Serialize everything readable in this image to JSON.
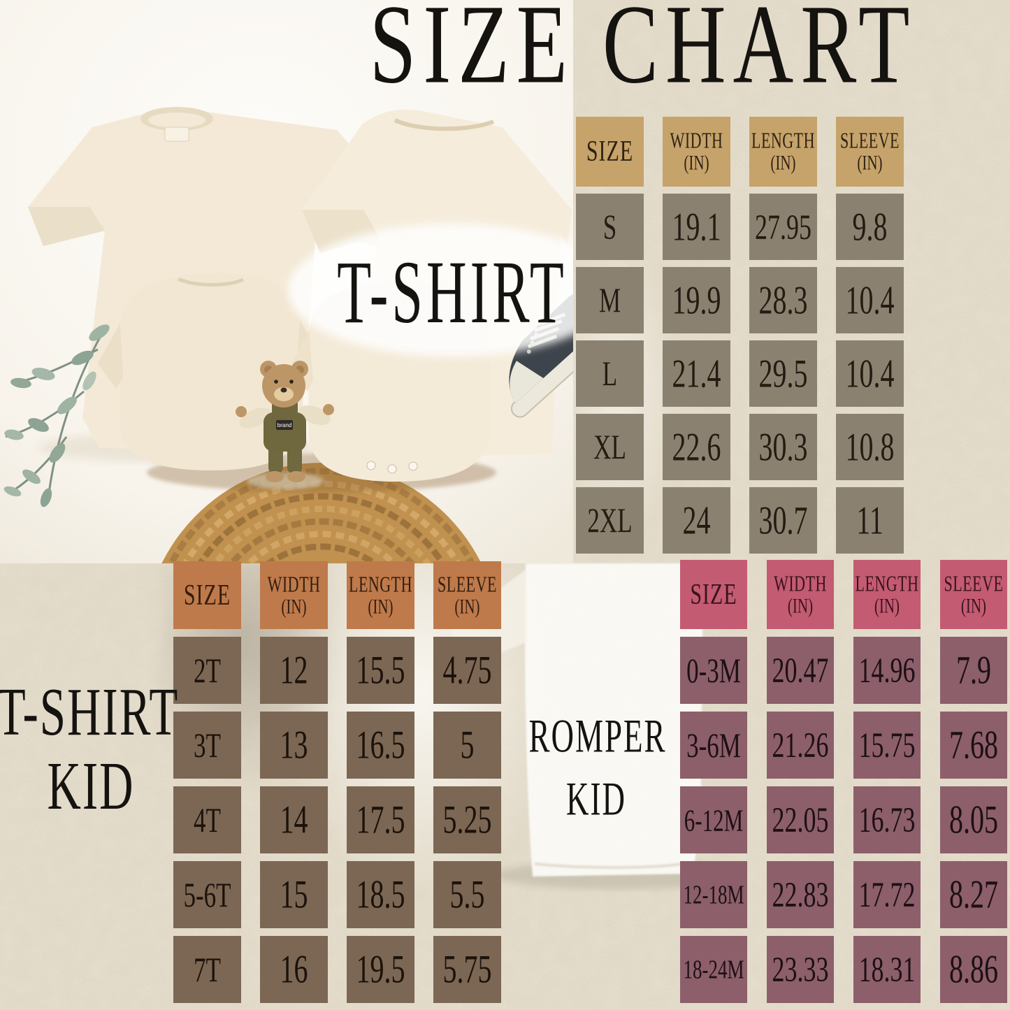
{
  "title": "SIZE CHART",
  "colors": {
    "background": "#ece4d2",
    "label_text": "#151310"
  },
  "photo": {
    "teddy_badge": "brand"
  },
  "tables": {
    "tshirt": {
      "label": "T-SHIRT",
      "colors": {
        "header_bg": "#c6a36a",
        "cell_bg": "#8b8170",
        "header_text": "#2f2214",
        "cell_text": "#241b12"
      },
      "columns": [
        {
          "label": "SIZE"
        },
        {
          "label": "WIDTH",
          "unit": "(IN)"
        },
        {
          "label": "LENGTH",
          "unit": "(IN)"
        },
        {
          "label": "SLEEVE",
          "unit": "(IN)"
        }
      ],
      "rows": [
        [
          "S",
          "19.1",
          "27.95",
          "9.8"
        ],
        [
          "M",
          "19.9",
          "28.3",
          "10.4"
        ],
        [
          "L",
          "21.4",
          "29.5",
          "10.4"
        ],
        [
          "XL",
          "22.6",
          "30.3",
          "10.8"
        ],
        [
          "2XL",
          "24",
          "30.7",
          "11"
        ]
      ]
    },
    "tshirt_kid": {
      "label_line1": "T-SHIRT",
      "label_line2": "KID",
      "colors": {
        "header_bg": "#bf7a4b",
        "cell_bg": "#7b6754",
        "header_text": "#321d0e",
        "cell_text": "#1c120a"
      },
      "columns": [
        {
          "label": "SIZE"
        },
        {
          "label": "WIDTH",
          "unit": "(IN)"
        },
        {
          "label": "LENGTH",
          "unit": "(IN)"
        },
        {
          "label": "SLEEVE",
          "unit": "(IN)"
        }
      ],
      "rows": [
        [
          "2T",
          "12",
          "15.5",
          "4.75"
        ],
        [
          "3T",
          "13",
          "16.5",
          "5"
        ],
        [
          "4T",
          "14",
          "17.5",
          "5.25"
        ],
        [
          "5-6T",
          "15",
          "18.5",
          "5.5"
        ],
        [
          "7T",
          "16",
          "19.5",
          "5.75"
        ]
      ]
    },
    "romper_kid": {
      "label_line1": "ROMPER",
      "label_line2": "KID",
      "colors": {
        "header_bg": "#c35b72",
        "cell_bg": "#8c5f6b",
        "header_text": "#39131d",
        "cell_text": "#1d1014"
      },
      "columns": [
        {
          "label": "SIZE"
        },
        {
          "label": "WIDTH",
          "unit": "(IN)"
        },
        {
          "label": "LENGTH",
          "unit": "(IN)"
        },
        {
          "label": "SLEEVE",
          "unit": "(IN)"
        }
      ],
      "rows": [
        [
          "0-3M",
          "20.47",
          "14.96",
          "7.9"
        ],
        [
          "3-6M",
          "21.26",
          "15.75",
          "7.68"
        ],
        [
          "6-12M",
          "22.05",
          "16.73",
          "8.05"
        ],
        [
          "12-18M",
          "22.83",
          "17.72",
          "8.27"
        ],
        [
          "18-24M",
          "23.33",
          "18.31",
          "8.86"
        ]
      ]
    }
  },
  "chart_data": [
    {
      "type": "table",
      "title": "T-SHIRT",
      "columns": [
        "SIZE",
        "WIDTH (IN)",
        "LENGTH (IN)",
        "SLEEVE (IN)"
      ],
      "rows": [
        [
          "S",
          19.1,
          27.95,
          9.8
        ],
        [
          "M",
          19.9,
          28.3,
          10.4
        ],
        [
          "L",
          21.4,
          29.5,
          10.4
        ],
        [
          "XL",
          22.6,
          30.3,
          10.8
        ],
        [
          "2XL",
          24,
          30.7,
          11
        ]
      ]
    },
    {
      "type": "table",
      "title": "T-SHIRT KID",
      "columns": [
        "SIZE",
        "WIDTH (IN)",
        "LENGTH (IN)",
        "SLEEVE (IN)"
      ],
      "rows": [
        [
          "2T",
          12,
          15.5,
          4.75
        ],
        [
          "3T",
          13,
          16.5,
          5
        ],
        [
          "4T",
          14,
          17.5,
          5.25
        ],
        [
          "5-6T",
          15,
          18.5,
          5.5
        ],
        [
          "7T",
          16,
          19.5,
          5.75
        ]
      ]
    },
    {
      "type": "table",
      "title": "ROMPER KID",
      "columns": [
        "SIZE",
        "WIDTH (IN)",
        "LENGTH (IN)",
        "SLEEVE (IN)"
      ],
      "rows": [
        [
          "0-3M",
          20.47,
          14.96,
          7.9
        ],
        [
          "3-6M",
          21.26,
          15.75,
          7.68
        ],
        [
          "6-12M",
          22.05,
          16.73,
          8.05
        ],
        [
          "12-18M",
          22.83,
          17.72,
          8.27
        ],
        [
          "18-24M",
          23.33,
          18.31,
          8.86
        ]
      ]
    }
  ]
}
